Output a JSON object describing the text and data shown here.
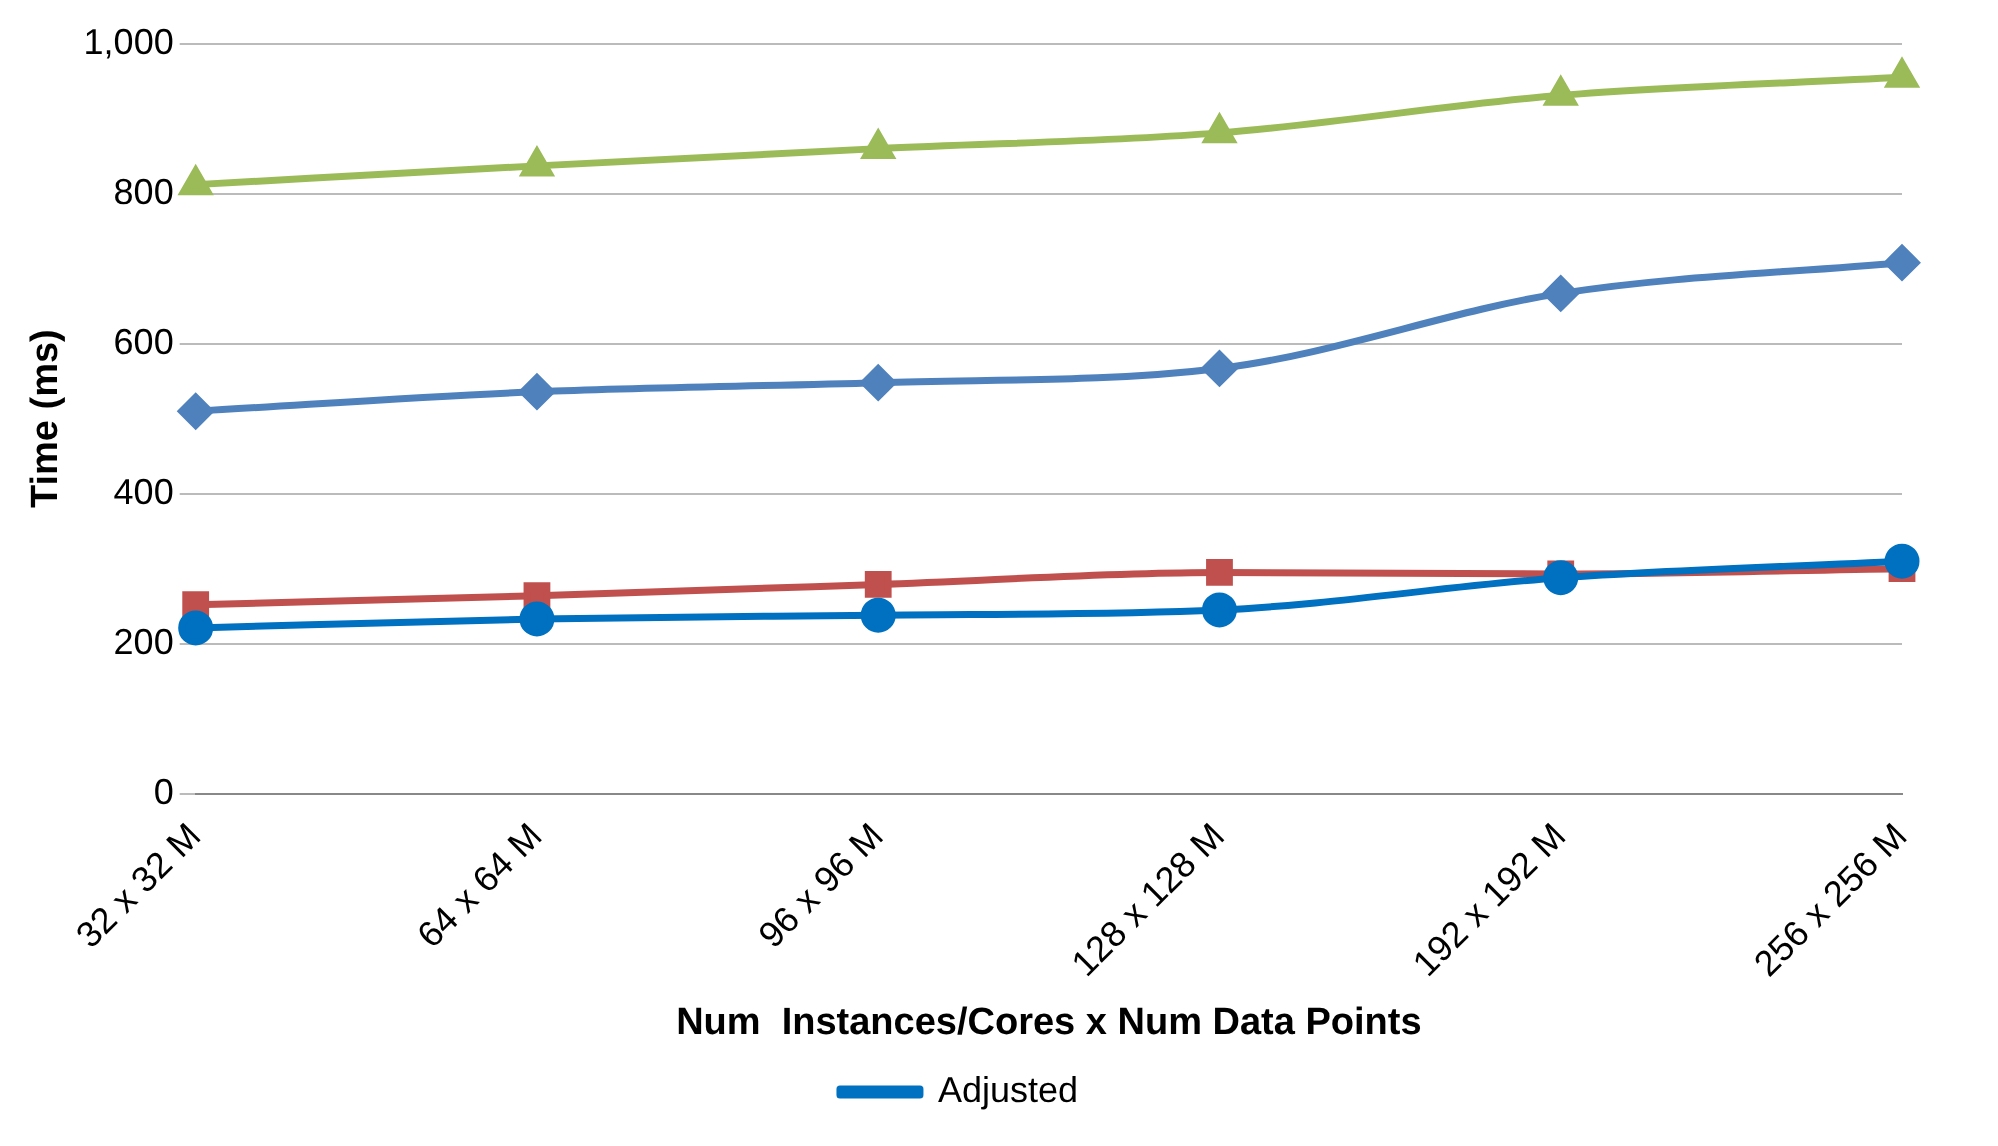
{
  "chart_data": {
    "type": "line",
    "xlabel": "Num  Instances/Cores x Num Data Points",
    "ylabel": "Time (ms)",
    "categories": [
      "32 x 32 M",
      "64 x 64 M",
      "96 x 96 M",
      "128 x 128 M",
      "192 x 192 M",
      "256 x 256 M"
    ],
    "series": [
      {
        "color": "#9bbb59",
        "marker": "triangle",
        "values": [
          812,
          837,
          860,
          881,
          931,
          955
        ]
      },
      {
        "color": "#4f81bd",
        "marker": "diamond",
        "values": [
          510,
          536,
          548,
          567,
          667,
          708
        ]
      },
      {
        "color": "#c0504d",
        "marker": "square",
        "values": [
          252,
          264,
          279,
          295,
          293,
          300
        ]
      },
      {
        "name": "Adjusted",
        "color": "#0070c0",
        "marker": "circle",
        "values": [
          221,
          233,
          238,
          245,
          288,
          310
        ]
      }
    ],
    "ylim": [
      0,
      1000
    ],
    "yticks": [
      0,
      200,
      400,
      600,
      800,
      {
        "value": 1000,
        "label": "1,000"
      }
    ],
    "grid": "y",
    "legend": "bottom",
    "line_style": "solid"
  }
}
